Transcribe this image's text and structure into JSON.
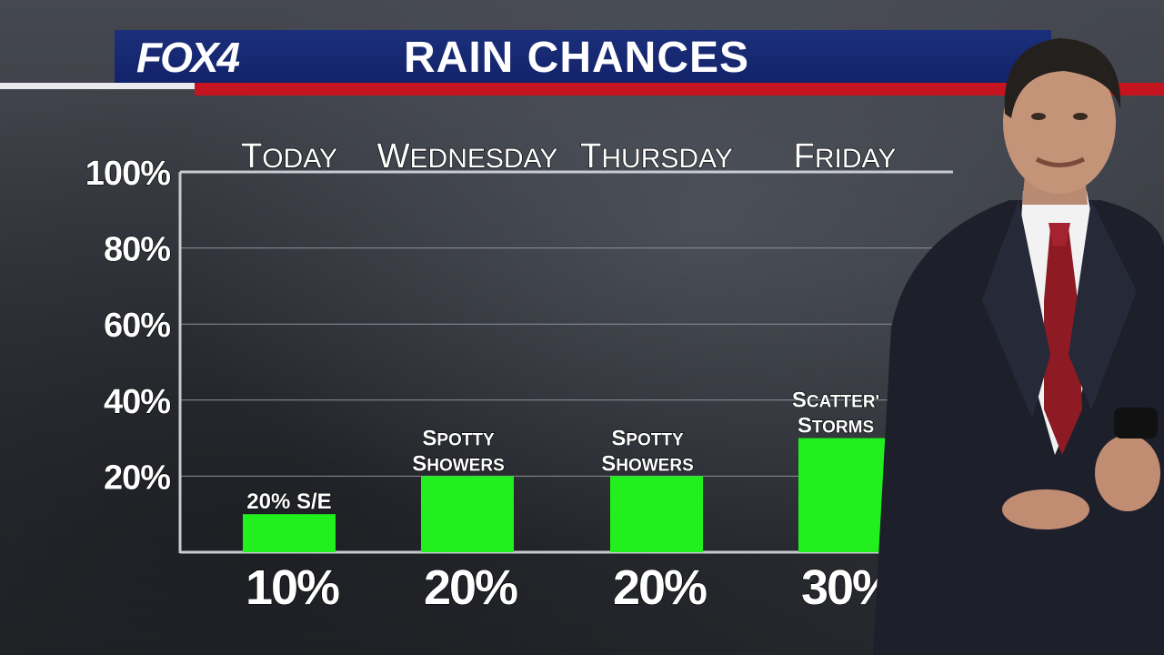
{
  "header": {
    "logo": "FOX4",
    "title": "RAIN CHANCES"
  },
  "colors": {
    "header_blue": "#13236a",
    "header_red": "#c41420",
    "bar_green": "#22f01e",
    "text": "#ffffff"
  },
  "chart_data": {
    "type": "bar",
    "categories": [
      "Today",
      "Wednesday",
      "Thursday",
      "Friday"
    ],
    "values": [
      10,
      20,
      20,
      30
    ],
    "value_labels": [
      "10%",
      "20%",
      "20%",
      "30%"
    ],
    "bar_annotations": [
      [
        "20% S/E"
      ],
      [
        "Spotty",
        "Showers"
      ],
      [
        "Spotty",
        "Showers"
      ],
      [
        "Scatter'",
        "Storms"
      ]
    ],
    "y_ticks": [
      "100%",
      "80%",
      "60%",
      "40%",
      "20%"
    ],
    "y_tick_values": [
      100,
      80,
      60,
      40,
      20
    ],
    "ylim": [
      0,
      100
    ],
    "grid": true
  }
}
